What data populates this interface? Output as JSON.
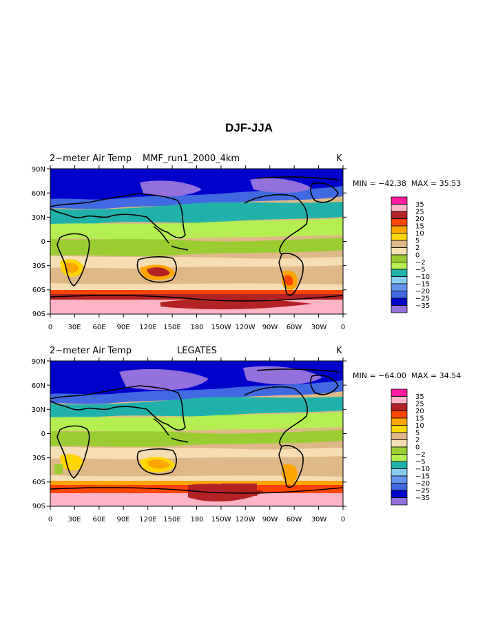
{
  "title": "DJF-JJA",
  "panels": [
    {
      "left_title": "2−meter Air Temp",
      "center_title": "MMF_run1_2000_4km",
      "units": "K",
      "min_label": "MIN = −42.38",
      "max_label": "MAX =   35.53"
    },
    {
      "left_title": "2−meter Air Temp",
      "center_title": "LEGATES",
      "units": "K",
      "min_label": "MIN = −64.00",
      "max_label": "MAX =   34.54"
    }
  ],
  "y_ticks": [
    "90N",
    "60N",
    "30N",
    "0",
    "30S",
    "60S",
    "90S"
  ],
  "x_ticks": [
    "0",
    "30E",
    "60E",
    "90E",
    "120E",
    "150E",
    "180",
    "150W",
    "120W",
    "90W",
    "60W",
    "30W",
    "0"
  ],
  "legend": {
    "labels": [
      "35",
      "25",
      "20",
      "15",
      "10",
      "5",
      "2",
      "0",
      "−2",
      "−5",
      "−10",
      "−15",
      "−20",
      "−25",
      "−35"
    ],
    "colors": [
      "#ff1aa0",
      "#ffb3c6",
      "#b22222",
      "#ff4500",
      "#ffa500",
      "#ffd700",
      "#deb887",
      "#f5deb3",
      "#9acd32",
      "#b4ee50",
      "#20b2aa",
      "#87ceeb",
      "#6495ed",
      "#4169e1",
      "#0000cd",
      "#9370db"
    ]
  },
  "palette": {
    "polar_cold": "#9370db",
    "deep_blue": "#0000cd",
    "mid_blue": "#4169e1",
    "light_blue": "#6495ed",
    "teal": "#20b2aa",
    "light_green": "#b4ee50",
    "olive_green": "#9acd32",
    "wheat": "#f5deb3",
    "tan": "#deb887",
    "yellow": "#ffd700",
    "orange": "#ffa500",
    "red_orange": "#ff4500",
    "dark_red": "#b22222",
    "pink": "#ffb3c6"
  }
}
